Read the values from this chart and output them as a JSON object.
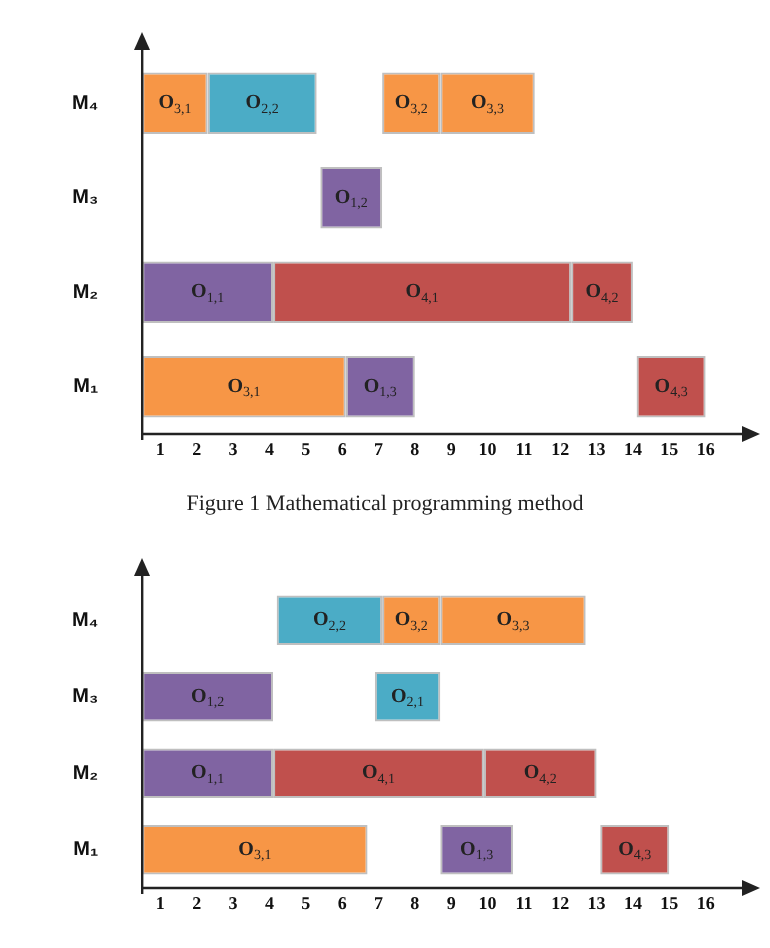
{
  "chart_data": [
    {
      "type": "bar",
      "orientation": "horizontal",
      "categories": [
        "M₄",
        "M₃",
        "M₂",
        "M₁"
      ],
      "series": [
        {
          "base": [
            0,
            4.9,
            0,
            0
          ],
          "values": [
            1.8,
            1.7,
            3.6,
            5.6
          ],
          "colors": [
            "#f79646",
            "#8064a2",
            "#8064a2",
            "#f79646"
          ]
        },
        {
          "base": [
            1.8,
            null,
            3.6,
            5.6
          ],
          "values": [
            3.0,
            null,
            8.2,
            1.9
          ],
          "colors": [
            "#4bacc6",
            null,
            "#c0504d",
            "#8064a2"
          ]
        },
        {
          "base": [
            6.6,
            null,
            11.8,
            13.6
          ],
          "values": [
            1.6,
            null,
            1.7,
            1.9
          ],
          "colors": [
            "#f79646",
            null,
            "#c0504d",
            "#c0504d"
          ]
        },
        {
          "base": [
            8.2,
            null,
            null,
            null
          ],
          "values": [
            2.6,
            null,
            null,
            null
          ],
          "colors": [
            "#f79646",
            null,
            null,
            null
          ]
        }
      ],
      "xlim": [
        0,
        16.5
      ],
      "xticks": [
        {
          "value": 0.5,
          "label": "1"
        },
        {
          "value": 1.5,
          "label": "2"
        },
        {
          "value": 2.5,
          "label": "3"
        },
        {
          "value": 3.5,
          "label": "4"
        },
        {
          "value": 4.5,
          "label": "5"
        },
        {
          "value": 5.5,
          "label": "6"
        },
        {
          "value": 6.5,
          "label": "7"
        },
        {
          "value": 7.5,
          "label": "8"
        },
        {
          "value": 8.5,
          "label": "9"
        },
        {
          "value": 9.5,
          "label": "10"
        },
        {
          "value": 10.5,
          "label": "11"
        },
        {
          "value": 11.5,
          "label": "12"
        },
        {
          "value": 12.5,
          "label": "13"
        },
        {
          "value": 13.5,
          "label": "14"
        },
        {
          "value": 14.5,
          "label": "15"
        },
        {
          "value": 15.5,
          "label": "16"
        }
      ],
      "grid": false,
      "legend": false,
      "annotations": [
        "O$_{3,1}$",
        "O$_{2,2}$",
        "O$_{3,2}$",
        "O$_{3,3}$",
        "O$_{1,2}$",
        "O$_{1,1}$",
        "O$_{4,1}$",
        "O$_{4,2}$",
        "O$_{3,1}$",
        "O$_{1,3}$",
        "O$_{4,3}$",
        "Figure 1 Mathematical programming method"
      ]
    },
    {
      "type": "bar",
      "orientation": "horizontal",
      "categories": [
        "M₄",
        "M₃",
        "M₂",
        "M₁"
      ],
      "series": [
        {
          "base": [
            3.7,
            0,
            0,
            0
          ],
          "values": [
            2.9,
            3.6,
            3.6,
            6.2
          ],
          "colors": [
            "#4bacc6",
            "#8064a2",
            "#8064a2",
            "#f79646"
          ]
        },
        {
          "base": [
            6.6,
            6.4,
            3.6,
            8.2
          ],
          "values": [
            1.6,
            1.8,
            5.8,
            2.0
          ],
          "colors": [
            "#f79646",
            "#4bacc6",
            "#c0504d",
            "#8064a2"
          ]
        },
        {
          "base": [
            8.2,
            null,
            9.4,
            12.6
          ],
          "values": [
            4.0,
            null,
            3.1,
            1.9
          ],
          "colors": [
            "#f79646",
            null,
            "#c0504d",
            "#c0504d"
          ]
        }
      ],
      "xlim": [
        0,
        16.5
      ],
      "xticks": [
        {
          "value": 0.5,
          "label": "1"
        },
        {
          "value": 1.5,
          "label": "2"
        },
        {
          "value": 2.5,
          "label": "3"
        },
        {
          "value": 3.5,
          "label": "4"
        },
        {
          "value": 4.5,
          "label": "5"
        },
        {
          "value": 5.5,
          "label": "6"
        },
        {
          "value": 6.5,
          "label": "7"
        },
        {
          "value": 7.5,
          "label": "8"
        },
        {
          "value": 8.5,
          "label": "9"
        },
        {
          "value": 9.5,
          "label": "10"
        },
        {
          "value": 10.5,
          "label": "11"
        },
        {
          "value": 11.5,
          "label": "12"
        },
        {
          "value": 12.5,
          "label": "13"
        },
        {
          "value": 13.5,
          "label": "14"
        },
        {
          "value": 14.5,
          "label": "15"
        },
        {
          "value": 15.5,
          "label": "16"
        }
      ],
      "grid": false,
      "legend": false,
      "annotations": [
        "O$_{2,2}$",
        "O$_{3,2}$",
        "O$_{3,3}$",
        "O$_{1,2}$",
        "O$_{2,1}$",
        "O$_{1,1}$",
        "O$_{4,1}$",
        "O$_{4,2}$",
        "O$_{3,1}$",
        "O$_{1,3}$",
        "O$_{4,3}$"
      ]
    }
  ]
}
